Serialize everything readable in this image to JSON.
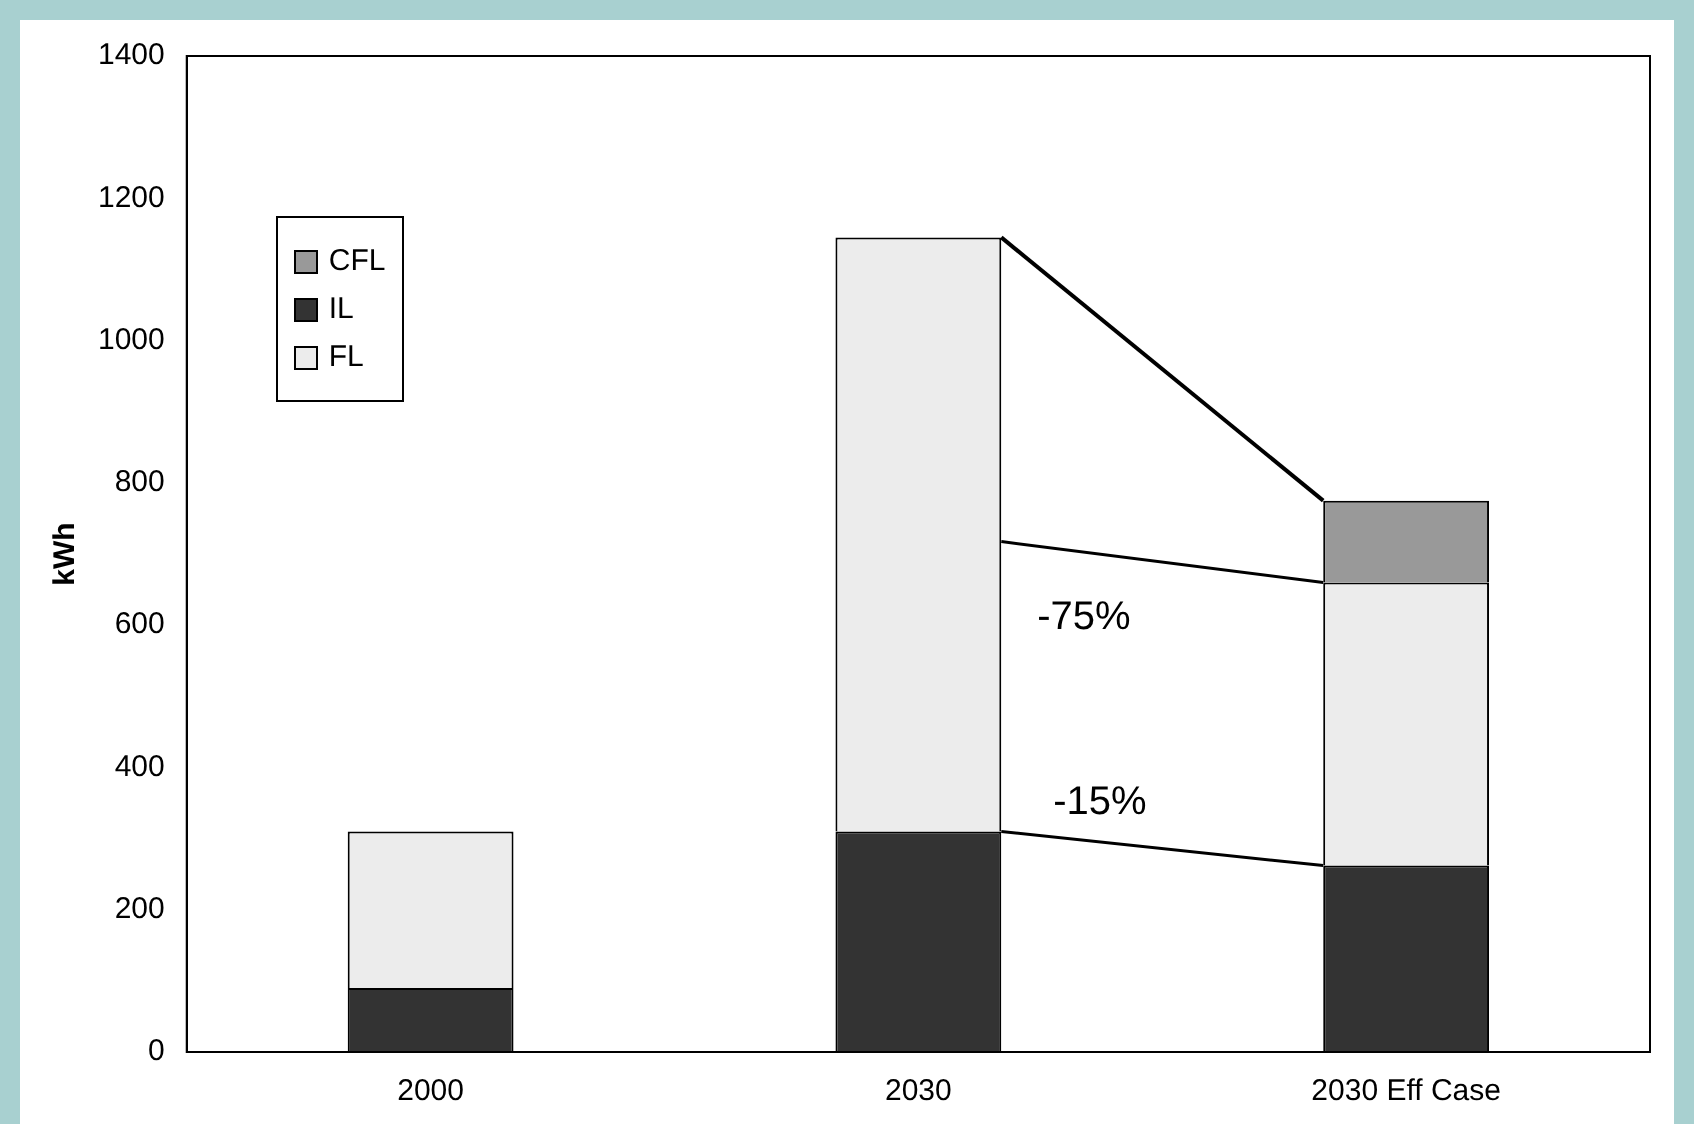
{
  "chart_data": {
    "type": "bar",
    "stacked": true,
    "ylabel": "kWh",
    "categories": [
      "2000",
      "2030",
      "2030 Eff Case"
    ],
    "series": [
      {
        "name": "IL",
        "color": "#333333",
        "values": [
          90,
          310,
          262
        ]
      },
      {
        "name": "FL",
        "color": "#ececec",
        "values": [
          220,
          835,
          398
        ]
      },
      {
        "name": "CFL",
        "color": "#999999",
        "values": [
          null,
          null,
          115
        ]
      }
    ],
    "ylim": [
      0,
      1400
    ],
    "yticks": [
      0,
      200,
      400,
      600,
      800,
      1000,
      1200,
      1400
    ],
    "grid": false,
    "legend": "top left",
    "annotations": [
      "-75%",
      "-15%"
    ]
  }
}
